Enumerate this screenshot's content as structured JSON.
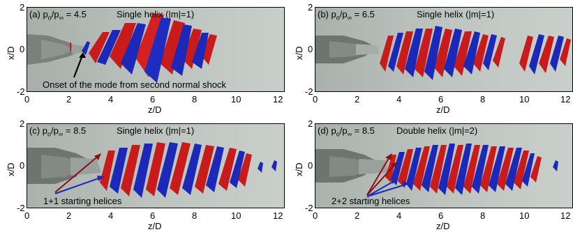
{
  "panels": [
    {
      "id": "a",
      "label": "(a) p",
      "ratio_sub_o": "o",
      "ratio_slash": "/p",
      "ratio_sub_inf": "∞",
      "ratio_value": " = 4.5",
      "mode": "Single helix (|m|=1)",
      "annotation": "Onset of the mode from second normal shock",
      "xticks": [
        "0",
        "2",
        "4",
        "6",
        "8",
        "10",
        "12"
      ],
      "yticks": [
        "2",
        "0",
        "-2"
      ],
      "xlabel": "z/D",
      "ylabel": "x/D"
    },
    {
      "id": "b",
      "label": "(b) p",
      "ratio_sub_o": "o",
      "ratio_slash": "/p",
      "ratio_sub_inf": "∞",
      "ratio_value": " = 6.5",
      "mode": "Single helix (|m|=1)",
      "annotation": "",
      "xticks": [
        "0",
        "2",
        "4",
        "6",
        "8",
        "10",
        "12"
      ],
      "yticks": [
        "2",
        "0",
        "-2"
      ],
      "xlabel": "z/D",
      "ylabel": "x/D"
    },
    {
      "id": "c",
      "label": "(c) p",
      "ratio_sub_o": "o",
      "ratio_slash": "/p",
      "ratio_sub_inf": "∞",
      "ratio_value": " = 8.5",
      "mode": "Single helix (|m|=1)",
      "annotation": "1+1 starting helices",
      "xticks": [
        "0",
        "2",
        "4",
        "6",
        "8",
        "10",
        "12"
      ],
      "yticks": [
        "2",
        "0",
        "-2"
      ],
      "xlabel": "z/D",
      "ylabel": "x/D"
    },
    {
      "id": "d",
      "label": "(d) p",
      "ratio_sub_o": "o",
      "ratio_slash": "/p",
      "ratio_sub_inf": "∞",
      "ratio_value": " = 8.5",
      "mode": "Double helix (|m|=2)",
      "annotation": "2+2 starting helices",
      "xticks": [
        "0",
        "2",
        "4",
        "6",
        "8",
        "10",
        "12"
      ],
      "yticks": [
        "2",
        "0",
        "-2"
      ],
      "xlabel": "z/D",
      "ylabel": "x/D"
    }
  ],
  "colors": {
    "positive": "#d01818",
    "negative": "#1f2cc0",
    "background": "#b4bcb6",
    "nozzle": "#6d7370"
  }
}
